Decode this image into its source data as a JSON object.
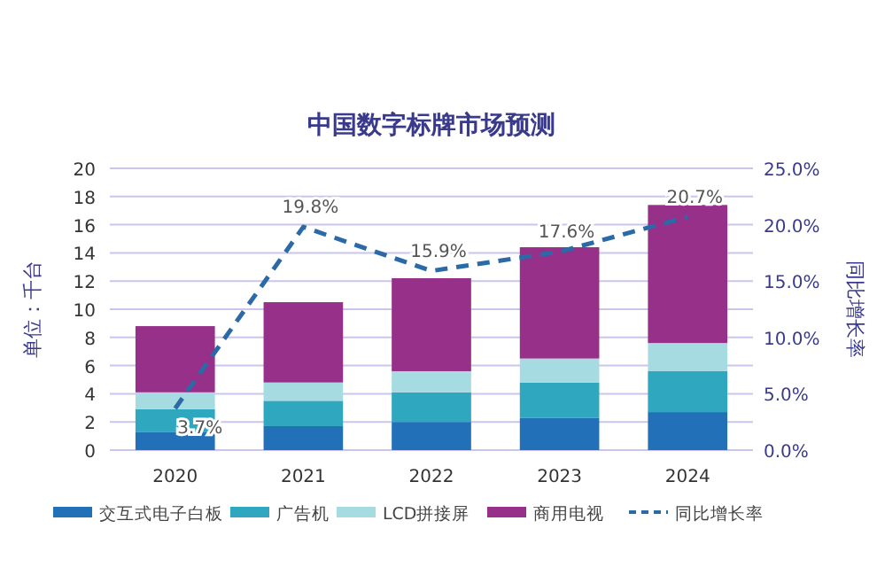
{
  "chart_data": {
    "type": "bar",
    "title": "中国数字标牌市场预测",
    "ylabel": "单位：千台",
    "y2label": "同比增长率",
    "categories": [
      "2020",
      "2021",
      "2022",
      "2023",
      "2024"
    ],
    "stacked": true,
    "series": [
      {
        "name": "交互式电子白板",
        "color": "#2271b8",
        "values": [
          1.3,
          1.7,
          2.0,
          2.3,
          2.7
        ]
      },
      {
        "name": "广告机",
        "color": "#2fa7bf",
        "values": [
          1.6,
          1.8,
          2.1,
          2.5,
          2.9
        ]
      },
      {
        "name": "LCD拼接屏",
        "color": "#a6dbe2",
        "values": [
          1.2,
          1.3,
          1.5,
          1.7,
          2.0
        ]
      },
      {
        "name": "商用电视",
        "color": "#963089",
        "values": [
          4.7,
          5.7,
          6.6,
          7.9,
          9.8
        ]
      },
      {
        "name": "同比增长率",
        "type": "line",
        "axis": "y2",
        "color": "#2b6aa6",
        "line_style": "dashed",
        "marker": "none",
        "values": [
          3.7,
          19.8,
          15.9,
          17.6,
          20.7
        ],
        "value_labels": [
          "3.7%",
          "19.8%",
          "15.9%",
          "17.6%",
          "20.7%"
        ]
      }
    ],
    "ylim": [
      0,
      20
    ],
    "yticks": [
      0,
      2,
      4,
      6,
      8,
      10,
      12,
      14,
      16,
      18,
      20
    ],
    "y2lim": [
      0,
      25
    ],
    "y2ticks": [
      {
        "value": 0,
        "label": "0.0%"
      },
      {
        "value": 5,
        "label": "5.0%"
      },
      {
        "value": 10,
        "label": "10.0%"
      },
      {
        "value": 15,
        "label": "15.0%"
      },
      {
        "value": 20,
        "label": "20.0%"
      },
      {
        "value": 25,
        "label": "25.0%"
      }
    ],
    "grid": "y",
    "legend": "bottom"
  }
}
